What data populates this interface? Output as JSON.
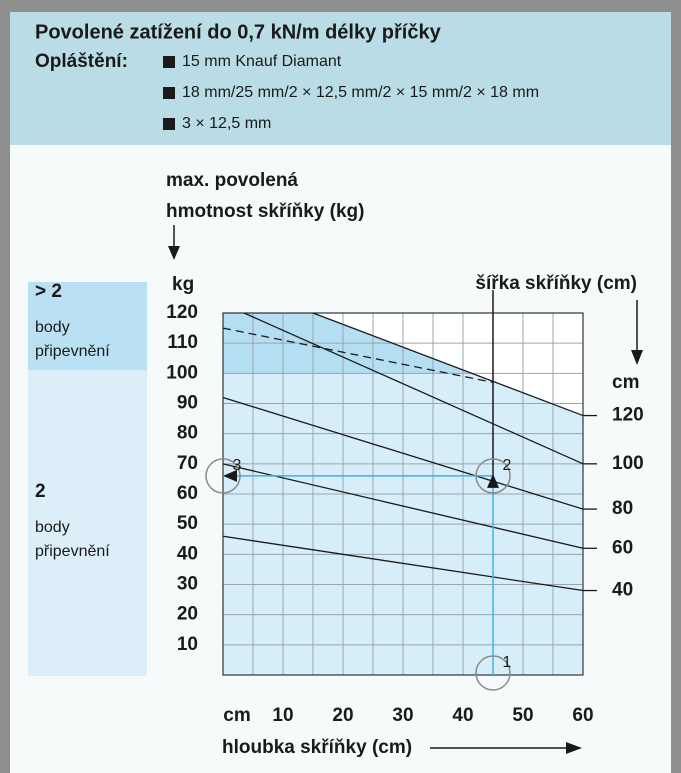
{
  "header": {
    "title": "Povolené zatížení do 0,7 kN/m délky příčky",
    "label": "Opláštění:",
    "items": [
      "15 mm Knauf Diamant",
      "18 mm/25 mm/2 × 12,5 mm/2 × 15 mm/2 × 18 mm",
      "3 × 12,5 mm"
    ]
  },
  "zones": [
    {
      "title": "> 2",
      "lines": [
        "body",
        "připevnění"
      ]
    },
    {
      "title": "2",
      "lines": [
        "body",
        "připevnění"
      ]
    }
  ],
  "chart_data": {
    "type": "line",
    "y_title": [
      "max. povolená",
      "hmotnost skříňky (kg)"
    ],
    "y_unit": "kg",
    "x_unit": "cm",
    "x_label": "hloubka skříňky (cm)",
    "width_label": "šířka skříňky (cm)",
    "width_unit": "cm",
    "xlim": [
      0,
      60
    ],
    "xticks": [
      10,
      20,
      30,
      40,
      50,
      60
    ],
    "xgrid": [
      0,
      5,
      10,
      15,
      20,
      25,
      30,
      35,
      40,
      45,
      50,
      55,
      60
    ],
    "ylim": [
      0,
      120
    ],
    "yticks": [
      10,
      20,
      30,
      40,
      50,
      60,
      70,
      80,
      90,
      100,
      110,
      120
    ],
    "grid": true,
    "series": [
      {
        "name": "120",
        "color": "#1a1a1a",
        "x": [
          15,
          60
        ],
        "values": [
          120,
          86
        ]
      },
      {
        "name": "100",
        "color": "#1a1a1a",
        "x": [
          3.5,
          60
        ],
        "values": [
          120,
          70
        ]
      },
      {
        "name": "80",
        "color": "#1a1a1a",
        "x": [
          0,
          60
        ],
        "values": [
          92,
          55
        ]
      },
      {
        "name": "60",
        "color": "#1a1a1a",
        "x": [
          0,
          60
        ],
        "values": [
          70,
          42
        ]
      },
      {
        "name": "40",
        "color": "#1a1a1a",
        "x": [
          0,
          60
        ],
        "values": [
          46,
          28
        ]
      }
    ],
    "dashed": {
      "x": [
        0,
        45
      ],
      "values": [
        115,
        97
      ]
    },
    "example": {
      "x": 45,
      "y": 66,
      "markers": [
        "1",
        "2",
        "3"
      ],
      "color": "#3bb4e8"
    }
  }
}
